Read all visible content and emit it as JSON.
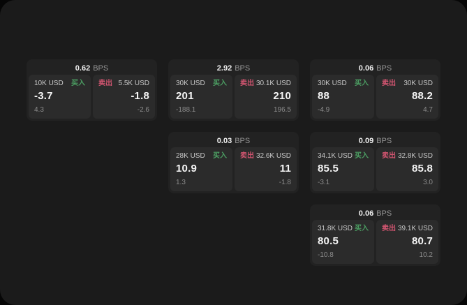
{
  "labels": {
    "bps_unit": "BPS",
    "buy": "买入",
    "sell": "卖出"
  },
  "colors": {
    "buy": "#4c9f63",
    "sell": "#d15570",
    "background": "#1b1b1b",
    "card": "#222222",
    "panel": "#2b2b2b"
  },
  "cards": [
    {
      "bps": "0.62",
      "row": 1,
      "col": 1,
      "buy": {
        "size": "10K USD",
        "value": "-3.7",
        "sub": "4.3"
      },
      "sell": {
        "size": "5.5K USD",
        "value": "-1.8",
        "sub": "-2.6"
      }
    },
    {
      "bps": "2.92",
      "row": 1,
      "col": 2,
      "buy": {
        "size": "30K USD",
        "value": "201",
        "sub": "-188.1"
      },
      "sell": {
        "size": "30.1K USD",
        "value": "210",
        "sub": "196.5"
      }
    },
    {
      "bps": "0.06",
      "row": 1,
      "col": 3,
      "buy": {
        "size": "30K USD",
        "value": "88",
        "sub": "-4.9"
      },
      "sell": {
        "size": "30K USD",
        "value": "88.2",
        "sub": "4.7"
      }
    },
    {
      "bps": "0.03",
      "row": 2,
      "col": 2,
      "buy": {
        "size": "28K USD",
        "value": "10.9",
        "sub": "1.3"
      },
      "sell": {
        "size": "32.6K USD",
        "value": "11",
        "sub": "-1.8"
      }
    },
    {
      "bps": "0.09",
      "row": 2,
      "col": 3,
      "buy": {
        "size": "34.1K USD",
        "value": "85.5",
        "sub": "-3.1"
      },
      "sell": {
        "size": "32.8K USD",
        "value": "85.8",
        "sub": "3.0"
      }
    },
    {
      "bps": "0.06",
      "row": 3,
      "col": 3,
      "buy": {
        "size": "31.8K USD",
        "value": "80.5",
        "sub": "-10.8"
      },
      "sell": {
        "size": "39.1K USD",
        "value": "80.7",
        "sub": "10.2"
      }
    }
  ]
}
